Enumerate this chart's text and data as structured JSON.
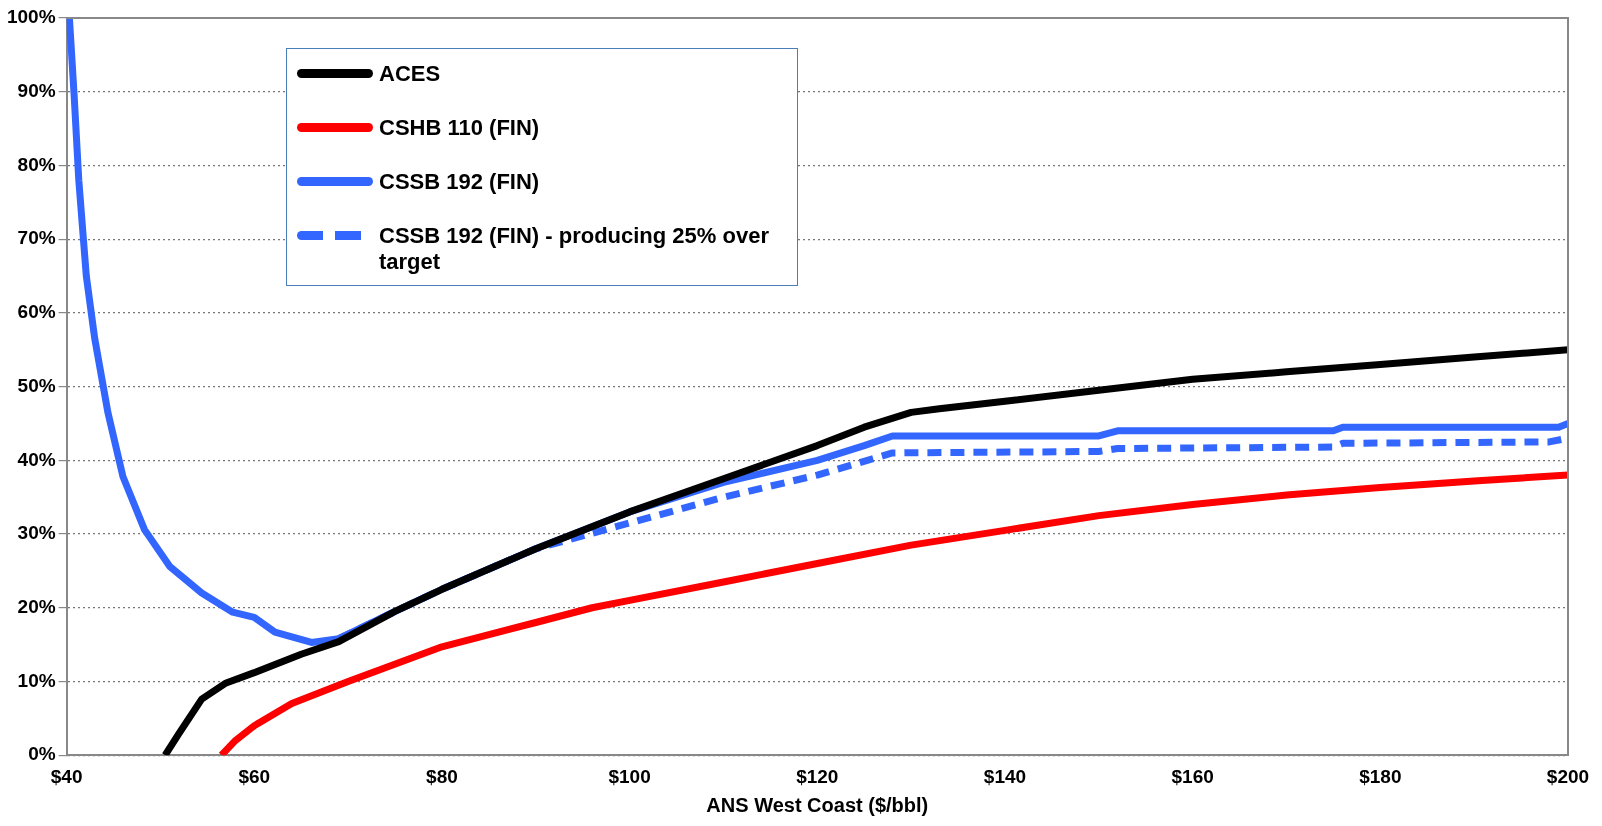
{
  "chart_data": {
    "type": "line",
    "xlabel": "ANS West Coast ($/bbl)",
    "xlim": [
      40,
      200
    ],
    "xticks": [
      {
        "value": 40,
        "label": "$40"
      },
      {
        "value": 60,
        "label": "$60"
      },
      {
        "value": 80,
        "label": "$80"
      },
      {
        "value": 100,
        "label": "$100"
      },
      {
        "value": 120,
        "label": "$120"
      },
      {
        "value": 140,
        "label": "$140"
      },
      {
        "value": 160,
        "label": "$160"
      },
      {
        "value": 180,
        "label": "$180"
      },
      {
        "value": 200,
        "label": "$200"
      }
    ],
    "ylim": [
      0,
      100
    ],
    "yticks": [
      {
        "value": 0,
        "label": "0%"
      },
      {
        "value": 10,
        "label": "10%"
      },
      {
        "value": 20,
        "label": "20%"
      },
      {
        "value": 30,
        "label": "30%"
      },
      {
        "value": 40,
        "label": "40%"
      },
      {
        "value": 50,
        "label": "50%"
      },
      {
        "value": 60,
        "label": "60%"
      },
      {
        "value": 70,
        "label": "70%"
      },
      {
        "value": 80,
        "label": "80%"
      },
      {
        "value": 90,
        "label": "90%"
      },
      {
        "value": 100,
        "label": "100%"
      }
    ],
    "grid": "y",
    "legend": "top left",
    "marker": "none",
    "series": [
      {
        "name": "ACES",
        "color": "#000000",
        "x": [
          50.5,
          52,
          54.4,
          57,
          60,
          65,
          69,
          75,
          80,
          90,
          100,
          110,
          120,
          125,
          130,
          133,
          140,
          150,
          160,
          170,
          180,
          190,
          200
        ],
        "values": [
          0,
          3,
          7.6,
          9.8,
          11.2,
          13.7,
          15.4,
          19.5,
          22.5,
          28,
          33,
          37.5,
          42,
          44.5,
          46.5,
          47,
          48,
          49.5,
          51,
          52,
          53,
          54,
          55
        ]
      },
      {
        "name": "CSHB 110 (FIN)",
        "color": "#ff0000",
        "x": [
          56.5,
          58,
          60,
          64,
          70,
          80,
          90,
          96,
          100,
          110,
          120,
          130,
          140,
          150,
          160,
          170,
          180,
          190,
          200
        ],
        "values": [
          0,
          2,
          4,
          7,
          10,
          14.7,
          18,
          20,
          21,
          23.5,
          26,
          28.5,
          30.5,
          32.5,
          34,
          35.3,
          36.3,
          37.2,
          38
        ]
      },
      {
        "name": "CSSB 192 (FIN)",
        "color": "#3366ff",
        "x": [
          40.3,
          40.8,
          41.3,
          42.1,
          43,
          44.4,
          46,
          48.3,
          51,
          54.4,
          57.7,
          60,
          62.2,
          66.1,
          69,
          75,
          80,
          90,
          100,
          110,
          120,
          125,
          128,
          150,
          152,
          175,
          176,
          199,
          200
        ],
        "values": [
          100,
          89.6,
          78,
          65,
          56.5,
          46.5,
          37.8,
          30.6,
          25.6,
          22,
          19.4,
          18.7,
          16.7,
          15.3,
          15.8,
          19.5,
          22.5,
          28,
          33,
          37,
          40,
          42,
          43.3,
          43.3,
          44,
          44,
          44.5,
          44.5,
          45
        ]
      },
      {
        "name": "CSSB 192 (FIN) - producing 25% over target",
        "color": "#3366ff",
        "line_style": "dashed",
        "x": [
          69,
          75,
          80,
          90,
          100,
          110,
          120,
          128,
          150,
          152,
          175,
          176,
          198,
          200
        ],
        "values": [
          15.8,
          19.5,
          22.5,
          28,
          31.5,
          35,
          38,
          41,
          41.2,
          41.6,
          41.8,
          42.3,
          42.5,
          43
        ]
      }
    ]
  }
}
